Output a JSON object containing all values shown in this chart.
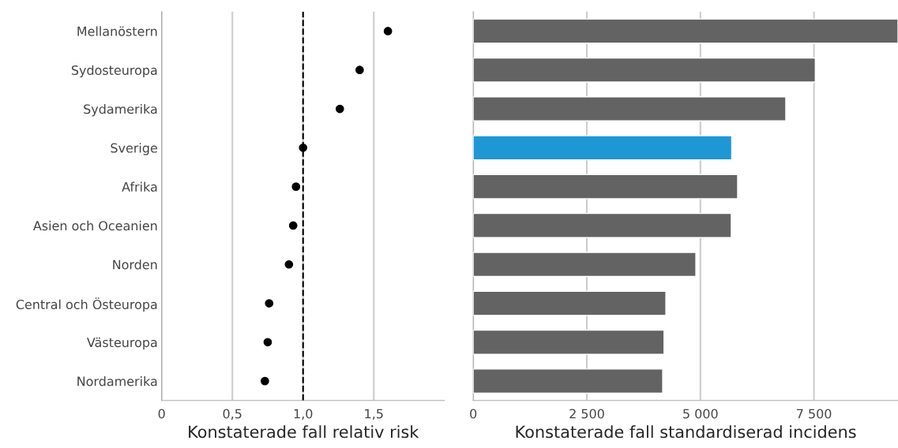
{
  "chart_data": [
    {
      "type": "scatter",
      "orientation": "horizontal",
      "xlabel": "Konstaterade fall relativ risk",
      "categories": [
        "Mellanöstern",
        "Sydosteuropa",
        "Sydamerika",
        "Sverige",
        "Afrika",
        "Asien och Oceanien",
        "Norden",
        "Central och Östeuropa",
        "Västeuropa",
        "Nordamerika"
      ],
      "series": [
        {
          "color": "#000000",
          "values": [
            1.6,
            1.4,
            1.26,
            1.0,
            0.95,
            0.93,
            0.9,
            0.76,
            0.75,
            0.73
          ]
        }
      ],
      "xlim": [
        0,
        2.0
      ],
      "xticks": [
        0,
        {
          "value": 0.5,
          "label": "0,5"
        },
        {
          "value": 1.0,
          "label": "1,0"
        },
        {
          "value": 1.5,
          "label": "1,5"
        }
      ],
      "ref_lines": [
        {
          "axis": "x",
          "value": 1.0,
          "color": "#000000",
          "line_style": "dashed"
        }
      ],
      "grid": "x",
      "marker": "circle"
    },
    {
      "type": "bar",
      "orientation": "horizontal",
      "xlabel": "Konstaterade fall standardiserad incidens",
      "categories": [
        null,
        null,
        null,
        null,
        null,
        null,
        null,
        null,
        null,
        null
      ],
      "values": [
        9350,
        7530,
        6880,
        5690,
        5820,
        5680,
        4900,
        4240,
        4200,
        4170
      ],
      "colors": [
        "#636363",
        "#636363",
        "#636363",
        "#1f97d4",
        "#636363",
        "#636363",
        "#636363",
        "#636363",
        "#636363",
        "#636363"
      ],
      "xlim": [
        0,
        9350
      ],
      "xticks": [
        0,
        {
          "value": 2500,
          "label": "2 500"
        },
        {
          "value": 5000,
          "label": "5 000"
        },
        {
          "value": 7500,
          "label": "7 500"
        }
      ],
      "grid": "x",
      "tick_labels": "x"
    }
  ]
}
